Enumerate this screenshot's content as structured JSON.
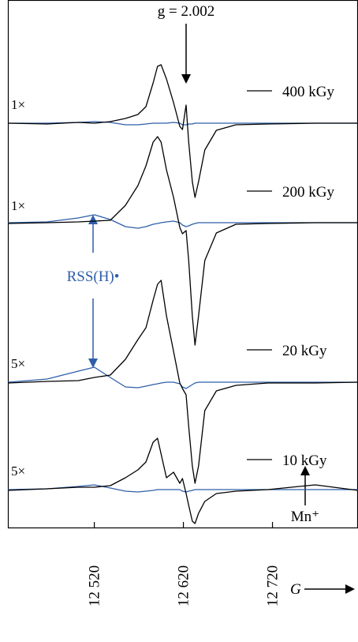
{
  "chart_data": {
    "type": "line",
    "xlabel": "G",
    "xlim": [
      12423,
      12816
    ],
    "xticks": [
      {
        "value": 12520,
        "label": "12 520"
      },
      {
        "value": 12620,
        "label": "12 620"
      },
      {
        "value": 12720,
        "label": "12 720"
      }
    ],
    "annotations": [
      "g = 2.002",
      "RSS(H)•",
      "Mn⁺"
    ],
    "panels": [
      {
        "gain": "1×",
        "ylim": [
          -1.6,
          1.6
        ],
        "x": [
          12423,
          12467,
          12502,
          12520,
          12538,
          12555,
          12569,
          12578,
          12586,
          12591,
          12595,
          12601,
          12609,
          12616,
          12619,
          12623,
          12626,
          12630,
          12633,
          12637,
          12644,
          12657,
          12679,
          12715,
          12768,
          12816
        ],
        "series": [
          {
            "name": "400 kGy",
            "color": "#000000",
            "values": [
              0,
              -0.01,
              0.01,
              0,
              0.02,
              0.06,
              0.11,
              0.21,
              0.51,
              0.72,
              0.74,
              0.56,
              0.26,
              -0.04,
              -0.08,
              0.23,
              -0.24,
              -0.74,
              -0.94,
              -0.74,
              -0.34,
              -0.09,
              -0.02,
              -0.01,
              0,
              0
            ]
          },
          {
            "color": "#2f5fa8",
            "values": [
              0,
              0,
              0.01,
              0.02,
              0.01,
              -0.02,
              -0.02,
              -0.01,
              0,
              0,
              0,
              0,
              0.01,
              0,
              -0.02,
              -0.02,
              -0.01,
              -0.01,
              0,
              0,
              0,
              0,
              0,
              0,
              0,
              0
            ]
          }
        ]
      },
      {
        "gain": "1×",
        "ylim": [
          -1.6,
          1.6
        ],
        "x": [
          12423,
          12467,
          12502,
          12520,
          12538,
          12555,
          12569,
          12578,
          12586,
          12591,
          12595,
          12601,
          12609,
          12616,
          12619,
          12623,
          12626,
          12630,
          12633,
          12637,
          12644,
          12657,
          12679,
          12715,
          12768,
          12816
        ],
        "series": [
          {
            "name": "200 kGy",
            "color": "#000000",
            "values": [
              -0.01,
              0,
              0.01,
              0.02,
              0.03,
              0.22,
              0.47,
              0.72,
              1.02,
              1.09,
              1.02,
              0.67,
              0.32,
              -0.06,
              -0.14,
              -0.1,
              -0.48,
              -1.18,
              -1.55,
              -1.18,
              -0.48,
              -0.13,
              -0.02,
              -0.01,
              0,
              0
            ]
          },
          {
            "color": "#2f5fa8",
            "values": [
              0,
              0.01,
              0.06,
              0.1,
              0.04,
              -0.05,
              -0.07,
              -0.05,
              -0.02,
              -0.01,
              0,
              0.01,
              0.02,
              0,
              -0.03,
              -0.05,
              -0.04,
              -0.02,
              -0.01,
              0,
              0,
              0,
              0,
              0,
              0,
              0
            ]
          }
        ]
      },
      {
        "gain": "5×",
        "ylim": [
          -1.6,
          1.6
        ],
        "x": [
          12423,
          12467,
          12502,
          12520,
          12538,
          12555,
          12569,
          12578,
          12586,
          12591,
          12595,
          12601,
          12609,
          12616,
          12619,
          12623,
          12626,
          12630,
          12633,
          12637,
          12644,
          12657,
          12679,
          12715,
          12768,
          12816
        ],
        "series": [
          {
            "name": "20 kGy",
            "color": "#000000",
            "values": [
              -0.01,
              0.01,
              0.02,
              0.06,
              0.09,
              0.29,
              0.54,
              0.69,
              1.04,
              1.24,
              1.29,
              0.84,
              0.39,
              -0.01,
              -0.08,
              -0.16,
              -0.56,
              -1.06,
              -1.28,
              -1.06,
              -0.36,
              -0.11,
              -0.04,
              -0.01,
              -0.01,
              0
            ]
          },
          {
            "color": "#2f5fa8",
            "values": [
              0,
              0.04,
              0.14,
              0.19,
              0.06,
              -0.06,
              -0.07,
              -0.05,
              -0.03,
              -0.02,
              -0.01,
              0,
              0,
              -0.02,
              -0.06,
              -0.08,
              -0.06,
              -0.03,
              -0.01,
              0,
              0,
              0,
              0,
              0,
              0,
              0
            ]
          }
        ]
      },
      {
        "gain": "5×",
        "ylim": [
          -1.6,
          1.6
        ],
        "x": [
          12423,
          12467,
          12502,
          12520,
          12538,
          12555,
          12569,
          12578,
          12586,
          12591,
          12595,
          12601,
          12609,
          12616,
          12619,
          12623,
          12626,
          12630,
          12633,
          12637,
          12644,
          12657,
          12679,
          12715,
          12768,
          12816
        ],
        "series": [
          {
            "name": "10 kGy",
            "color": "#000000",
            "values": [
              -0.01,
              0.01,
              0.03,
              0.03,
              0.05,
              0.15,
              0.25,
              0.35,
              0.6,
              0.65,
              0.45,
              0.15,
              0.22,
              0.08,
              0.14,
              -0.05,
              -0.2,
              -0.4,
              -0.43,
              -0.3,
              -0.15,
              -0.05,
              -0.02,
              0,
              0.06,
              -0.01
            ]
          },
          {
            "color": "#2f5fa8",
            "values": [
              0,
              0.01,
              0.04,
              0.06,
              0.02,
              -0.02,
              -0.03,
              -0.02,
              -0.01,
              0,
              0,
              0,
              0,
              0,
              -0.02,
              -0.03,
              -0.02,
              -0.01,
              0,
              0,
              0,
              0,
              0,
              0,
              0,
              0
            ]
          }
        ]
      }
    ]
  }
}
